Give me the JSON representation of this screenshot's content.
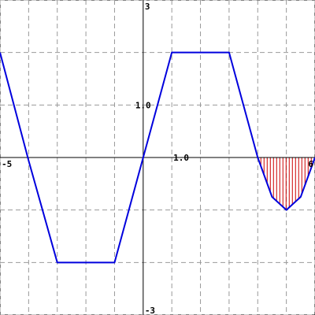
{
  "chart_data": {
    "type": "line",
    "xlim": [
      -5,
      6
    ],
    "ylim": [
      -3,
      3
    ],
    "grid": true,
    "grid_step": {
      "x": 1,
      "y": 1
    },
    "tick_labels": {
      "x_min": "-5",
      "x_max": "6",
      "y_max": "3",
      "y_min": "-3",
      "x_unit": "1.0",
      "y_unit": "1.0"
    },
    "series": [
      {
        "points": [
          [
            -5,
            2
          ],
          [
            -4,
            -0.06
          ],
          [
            -3,
            -2
          ],
          [
            -2.6,
            -2
          ],
          [
            -1,
            -2
          ],
          [
            0,
            0
          ],
          [
            1,
            2
          ],
          [
            3,
            2
          ],
          [
            4,
            0
          ],
          [
            4.5,
            -0.75
          ],
          [
            5,
            -1
          ],
          [
            5.5,
            -0.75
          ],
          [
            6,
            0
          ]
        ],
        "color": "#0000dd"
      }
    ],
    "shaded_region": {
      "x_range": [
        4,
        6
      ],
      "from": 0,
      "to_series": 0,
      "hatch": "vertical",
      "color": "#cc0000"
    },
    "colors": {
      "axis": "#000000",
      "grid": "#999999",
      "line": "#0000dd",
      "hatch": "#cc0000"
    }
  }
}
